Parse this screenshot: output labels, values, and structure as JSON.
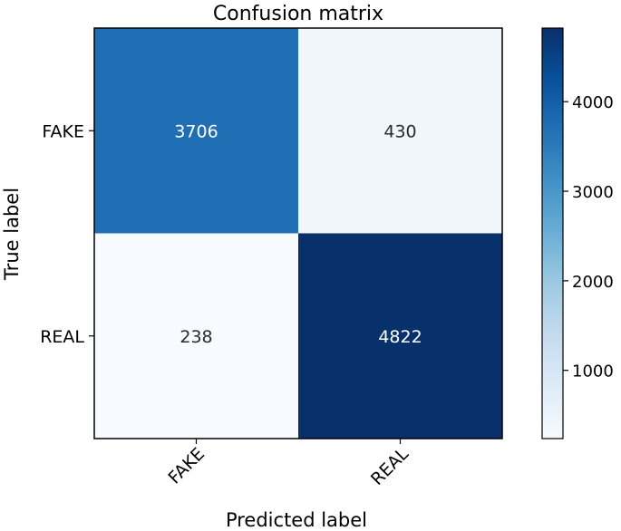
{
  "chart_data": {
    "type": "heatmap",
    "title": "Confusion matrix",
    "xlabel": "Predicted label",
    "ylabel": "True label",
    "x_categories": [
      "FAKE",
      "REAL"
    ],
    "y_categories": [
      "FAKE",
      "REAL"
    ],
    "values": [
      [
        3706,
        430
      ],
      [
        238,
        4822
      ]
    ],
    "colorbar": {
      "ticks": [
        1000,
        2000,
        3000,
        4000
      ],
      "range": [
        238,
        4822
      ],
      "colormap": "Blues"
    },
    "cell_text_colors": {
      "dark_background": "#ffffff",
      "light_background": "#2b2b2b"
    }
  }
}
